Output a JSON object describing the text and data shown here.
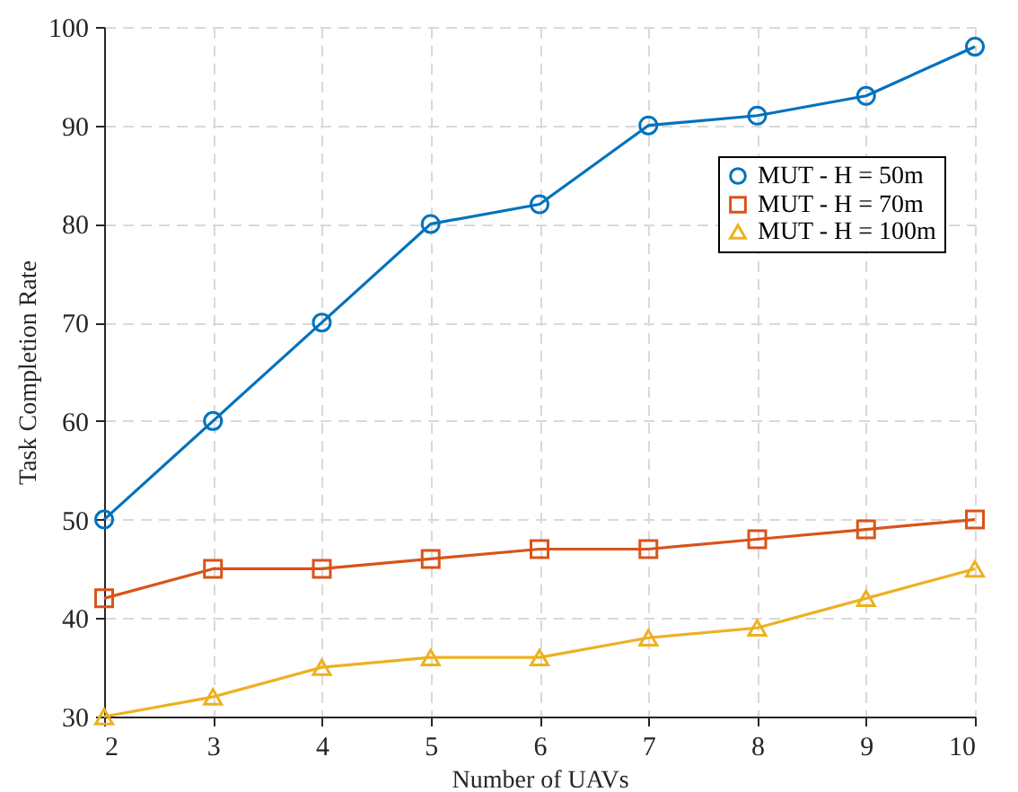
{
  "chart_data": {
    "type": "line",
    "xlabel": "Number of UAVs",
    "ylabel": "Task Completion Rate",
    "x": [
      2,
      3,
      4,
      5,
      6,
      7,
      8,
      9,
      10
    ],
    "series": [
      {
        "name": "MUT - H = 50m",
        "color": "#0072bd",
        "marker": "circle",
        "values": [
          50,
          60,
          70,
          80,
          82,
          90,
          91,
          93,
          98
        ]
      },
      {
        "name": "MUT - H = 70m",
        "color": "#d95319",
        "marker": "square",
        "values": [
          42,
          45,
          45,
          46,
          47,
          47,
          48,
          49,
          50
        ]
      },
      {
        "name": "MUT - H = 100m",
        "color": "#edb120",
        "marker": "triangle",
        "values": [
          30,
          32,
          35,
          36,
          36,
          38,
          39,
          42,
          45
        ]
      }
    ],
    "xlim": [
      2,
      10
    ],
    "xticks": [
      2,
      3,
      4,
      5,
      6,
      7,
      8,
      9,
      10
    ],
    "ylim": [
      30,
      100
    ],
    "yticks": [
      30,
      40,
      50,
      60,
      70,
      80,
      90,
      100
    ],
    "grid": true,
    "legend": "top right",
    "line_style": "solid"
  }
}
